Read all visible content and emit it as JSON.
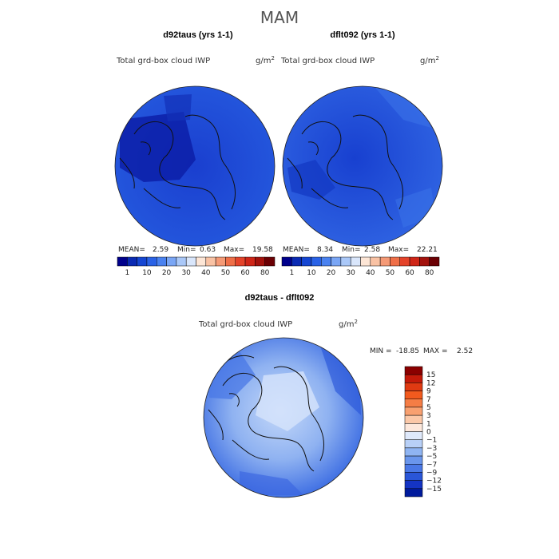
{
  "figure": {
    "season_title": "MAM"
  },
  "chart_data": [
    {
      "type": "heatmap",
      "projection": "north-polar-stereographic",
      "title": "d92taus (yrs 1-1)",
      "field_label": "Total grd-box cloud IWP",
      "units": "g/m",
      "units_exponent": "2",
      "stats": {
        "mean_label": "MEAN=",
        "mean": "2.59",
        "min_label": "Min=",
        "min": "0.63",
        "max_label": "Max=",
        "max": "19.58"
      },
      "colorbar": {
        "orientation": "horizontal",
        "tick_labels": [
          "1",
          "10",
          "20",
          "30",
          "40",
          "50",
          "60",
          "80"
        ],
        "colors": [
          "#00008b",
          "#0a2ab3",
          "#1546d2",
          "#2a62e6",
          "#4a82f0",
          "#7aa6f5",
          "#aac8f8",
          "#d9e6fb",
          "#fde6d6",
          "#f9c2a4",
          "#f59a76",
          "#ef6f48",
          "#e4432a",
          "#cf2618",
          "#a3120d",
          "#6b0004"
        ]
      },
      "dominant_color": "#1f4fd8"
    },
    {
      "type": "heatmap",
      "projection": "north-polar-stereographic",
      "title": "dflt092 (yrs 1-1)",
      "field_label": "Total grd-box cloud IWP",
      "units": "g/m",
      "units_exponent": "2",
      "stats": {
        "mean_label": "MEAN=",
        "mean": "8.34",
        "min_label": "Min=",
        "min": "2.58",
        "max_label": "Max=",
        "max": "22.21"
      },
      "colorbar": {
        "orientation": "horizontal",
        "tick_labels": [
          "1",
          "10",
          "20",
          "30",
          "40",
          "50",
          "60",
          "80"
        ],
        "colors": [
          "#00008b",
          "#0a2ab3",
          "#1546d2",
          "#2a62e6",
          "#4a82f0",
          "#7aa6f5",
          "#aac8f8",
          "#d9e6fb",
          "#fde6d6",
          "#f9c2a4",
          "#f59a76",
          "#ef6f48",
          "#e4432a",
          "#cf2618",
          "#a3120d",
          "#6b0004"
        ]
      },
      "dominant_color": "#2556dc"
    },
    {
      "type": "heatmap",
      "projection": "north-polar-stereographic",
      "title": "d92taus - dflt092",
      "field_label": "Total grd-box cloud IWP",
      "units": "g/m",
      "units_exponent": "2",
      "stats": {
        "min_label": "MIN =",
        "min": "-18.85",
        "max_label": "MAX =",
        "max": "2.52"
      },
      "colorbar": {
        "orientation": "vertical",
        "tick_labels": [
          "15",
          "12",
          "9",
          "7",
          "5",
          "3",
          "1",
          "0",
          "-1",
          "-3",
          "-5",
          "-7",
          "-9",
          "-12",
          "-15"
        ],
        "colors": [
          "#8b0000",
          "#c41a0a",
          "#e03a12",
          "#f25a1e",
          "#f57d45",
          "#f8a070",
          "#fbc8a8",
          "#fde8dc",
          "#dfe9fb",
          "#b8d0f7",
          "#8fb4f2",
          "#6a96ec",
          "#4a78e6",
          "#2a56d8",
          "#1434c4",
          "#001a9c"
        ]
      },
      "dominant_color": "#9ebff5"
    }
  ]
}
